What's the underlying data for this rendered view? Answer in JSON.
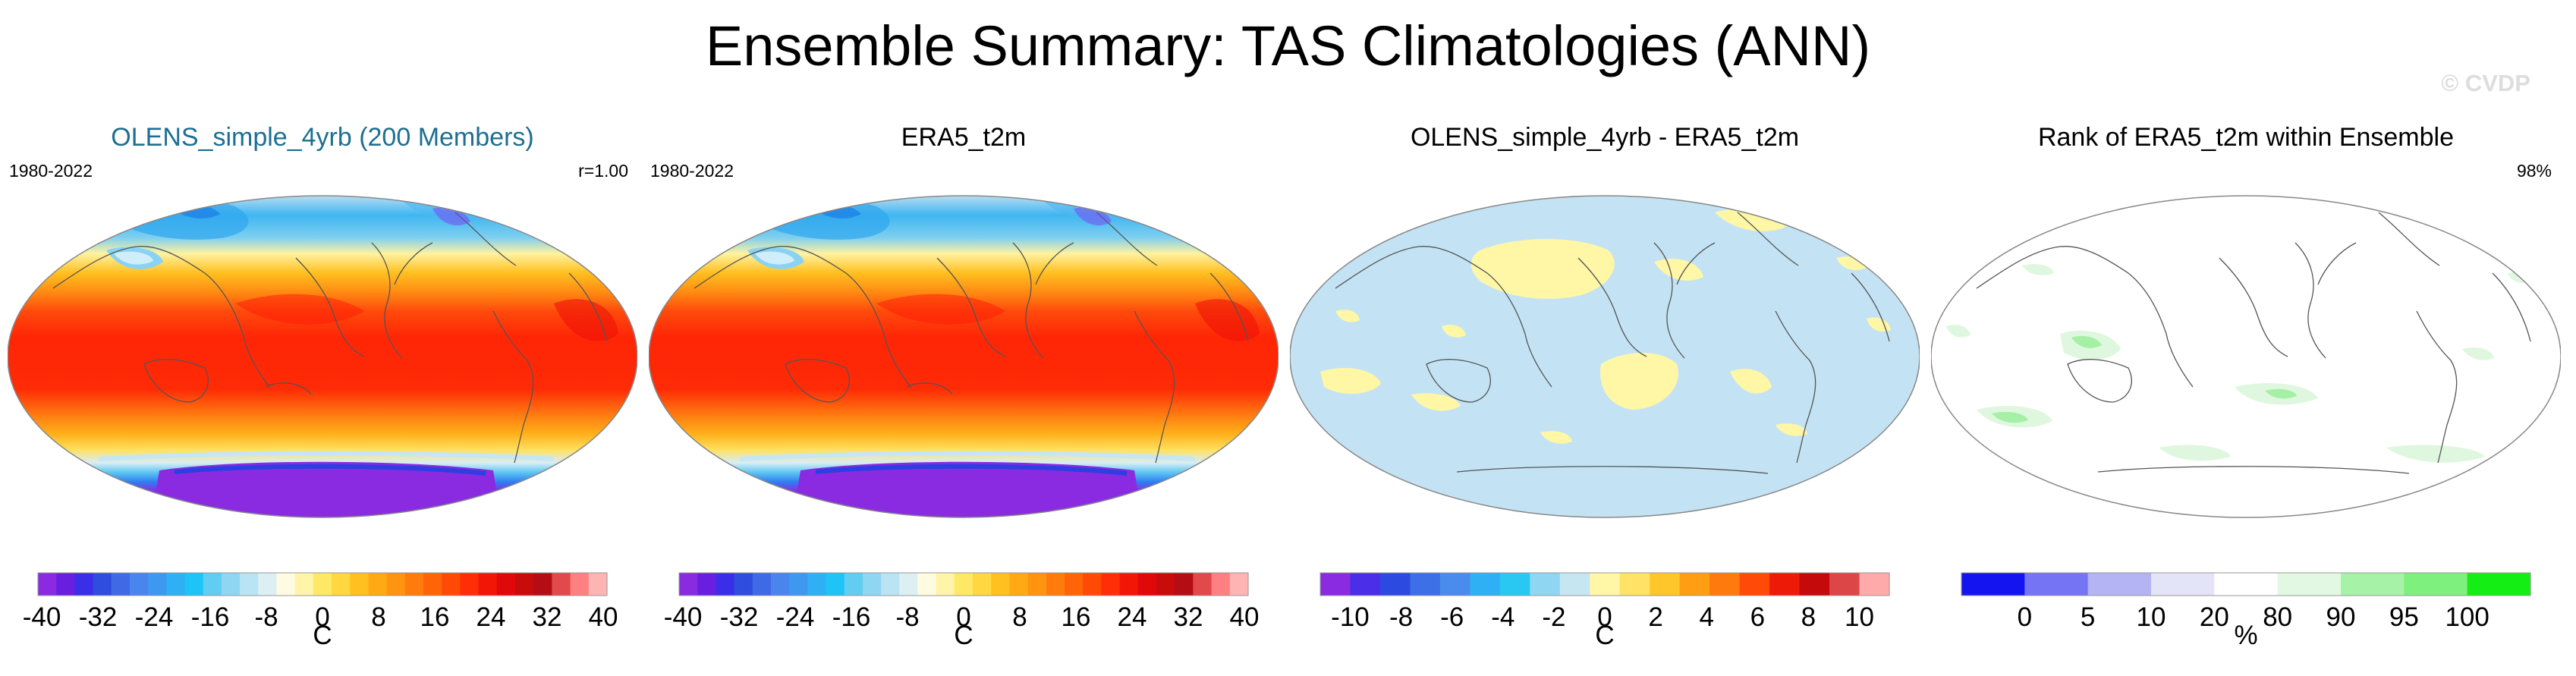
{
  "figure": {
    "title": "Ensemble Summary: TAS Climatologies (ANN)",
    "watermark": "© CVDP"
  },
  "panels": [
    {
      "title": "OLENS_simple_4yrb (200 Members)",
      "title_color": "#1c6f92",
      "period": "1980-2022",
      "stat": "r=1.00",
      "field": "temperature",
      "colorbar": {
        "unit": "C",
        "tick_labels": [
          "-40",
          "-32",
          "-24",
          "-16",
          "-8",
          "0",
          "8",
          "16",
          "24",
          "32",
          "40"
        ],
        "colors": [
          "#8a2be2",
          "#6a1fe0",
          "#3b2ee8",
          "#2f4ee0",
          "#3f6ae6",
          "#4a85ee",
          "#3f98f0",
          "#2fb0f5",
          "#1ec4f5",
          "#62cdf2",
          "#8fd6f2",
          "#b9e4f4",
          "#dcf0f4",
          "#fffbe0",
          "#fff4a8",
          "#ffe866",
          "#ffd740",
          "#ffc020",
          "#ffaa14",
          "#ff9410",
          "#ff7c0c",
          "#ff6408",
          "#ff4a06",
          "#ff2e06",
          "#f21606",
          "#e00808",
          "#c80c0c",
          "#b40e14",
          "#e04a4a",
          "#ff8080",
          "#ffb4b4"
        ]
      }
    },
    {
      "title": "ERA5_t2m",
      "title_color": "#000000",
      "period": "1980-2022",
      "stat": "",
      "field": "temperature",
      "colorbar": {
        "unit": "C",
        "tick_labels": [
          "-40",
          "-32",
          "-24",
          "-16",
          "-8",
          "0",
          "8",
          "16",
          "24",
          "32",
          "40"
        ],
        "colors": [
          "#8a2be2",
          "#6a1fe0",
          "#3b2ee8",
          "#2f4ee0",
          "#3f6ae6",
          "#4a85ee",
          "#3f98f0",
          "#2fb0f5",
          "#1ec4f5",
          "#62cdf2",
          "#8fd6f2",
          "#b9e4f4",
          "#dcf0f4",
          "#fffbe0",
          "#fff4a8",
          "#ffe866",
          "#ffd740",
          "#ffc020",
          "#ffaa14",
          "#ff9410",
          "#ff7c0c",
          "#ff6408",
          "#ff4a06",
          "#ff2e06",
          "#f21606",
          "#e00808",
          "#c80c0c",
          "#b40e14",
          "#e04a4a",
          "#ff8080",
          "#ffb4b4"
        ]
      }
    },
    {
      "title": "OLENS_simple_4yrb - ERA5_t2m",
      "title_color": "#000000",
      "period": "",
      "stat": "",
      "field": "difference",
      "colorbar": {
        "unit": "C",
        "tick_labels": [
          "-10",
          "-8",
          "-6",
          "-4",
          "-2",
          "0",
          "2",
          "4",
          "6",
          "8",
          "10"
        ],
        "colors": [
          "#8a2be2",
          "#4b2ee8",
          "#2c4ae0",
          "#3d6fe6",
          "#4a8cee",
          "#2fb0f5",
          "#28c8f2",
          "#8fd6f2",
          "#c6e6f2",
          "#fff7a6",
          "#ffe266",
          "#ffc62a",
          "#ff9e12",
          "#ff7a0c",
          "#ff4a08",
          "#ee1a08",
          "#c40a0a",
          "#dc4646",
          "#ffaaaa"
        ]
      }
    },
    {
      "title": "Rank of ERA5_t2m within Ensemble",
      "title_color": "#000000",
      "period": "",
      "stat": "98%",
      "field": "rank",
      "colorbar": {
        "unit": "%",
        "tick_labels": [
          "0",
          "5",
          "10",
          "20",
          "80",
          "90",
          "95",
          "100"
        ],
        "colors": [
          "#1414f0",
          "#7474f4",
          "#b4b4f4",
          "#e4e4f8",
          "#ffffff",
          "#e2f8e2",
          "#a6f2a6",
          "#7ef07e",
          "#14ee14"
        ]
      }
    }
  ]
}
